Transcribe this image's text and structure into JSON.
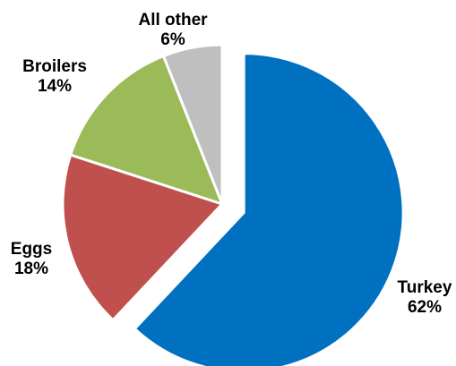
{
  "chart_data": {
    "type": "pie",
    "title": "",
    "categories": [
      "Turkey",
      "Eggs",
      "Broilers",
      "All other"
    ],
    "values": [
      62,
      18,
      14,
      6
    ],
    "value_labels": [
      "62%",
      "18%",
      "14%",
      "6%"
    ],
    "colors": [
      "#0070C0",
      "#C0504D",
      "#9BBB59",
      "#BFBFBF"
    ],
    "exploded": "Turkey",
    "legend": "none"
  }
}
